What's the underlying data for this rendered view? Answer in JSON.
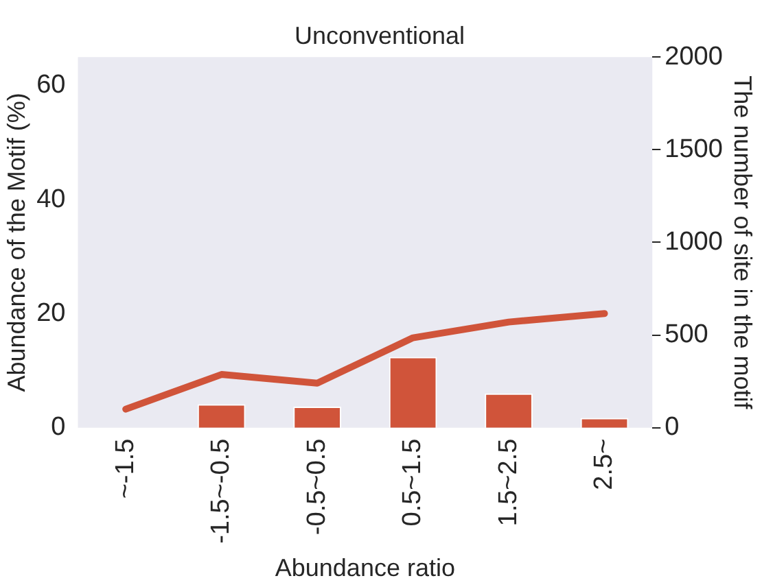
{
  "chart_data": {
    "type": "bar",
    "title": "Unconventional",
    "xlabel": "Abundance ratio",
    "ylabel": "Abundance of the Motif (%)",
    "y2label": "The number of site in the motif",
    "categories": [
      "~-1.5",
      "-1.5~-0.5",
      "-0.5~0.5",
      "0.5~1.5",
      "1.5~2.5",
      "2.5~"
    ],
    "series": [
      {
        "color": "#d0543a",
        "values": [
          0,
          4.1,
          3.7,
          12.4,
          6.0,
          1.7
        ]
      },
      {
        "type": "line",
        "axis": "y2",
        "color": "#d0543a",
        "values": [
          100,
          287,
          240,
          485,
          570,
          616
        ]
      }
    ],
    "ylim": [
      0,
      65
    ],
    "yticks": [
      0,
      20,
      40,
      60
    ],
    "y2lim": [
      0,
      2000
    ],
    "y2ticks": [
      0,
      500,
      1000,
      1500,
      2000
    ],
    "grid": false,
    "legend": false
  }
}
